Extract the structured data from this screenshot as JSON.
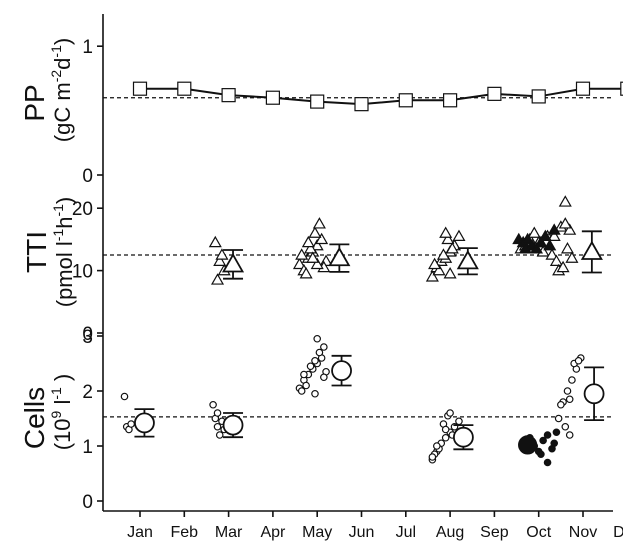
{
  "chart_data": {
    "type": "scatter",
    "x_axis": {
      "categories": [
        "Jan",
        "Feb",
        "Mar",
        "Apr",
        "May",
        "Jun",
        "Jul",
        "Aug",
        "Sep",
        "Oct",
        "Nov",
        "Dec"
      ]
    },
    "panels": [
      {
        "id": "pp",
        "ylabel_line1": "PP",
        "ylabel_line2": "(gC m",
        "ylabel_sup1": "-2",
        "ylabel_mid": "d",
        "ylabel_sup2": "-1",
        "ylabel_end": ")",
        "ylim": [
          0,
          1.25
        ],
        "ticks": [
          0,
          1
        ],
        "tick_labels": [
          "0",
          "1"
        ],
        "reference_line": 0.6,
        "series": [
          {
            "kind": "monthly_mean_line",
            "marker": "square",
            "x": [
              1,
              2,
              3,
              4,
              5,
              6,
              7,
              8,
              9,
              10,
              11,
              12
            ],
            "y": [
              0.67,
              0.67,
              0.62,
              0.6,
              0.57,
              0.55,
              0.58,
              0.58,
              0.63,
              0.61,
              0.67,
              0.67
            ]
          }
        ]
      },
      {
        "id": "tti",
        "ylabel_line1": "TTI",
        "ylabel_line2": "(pmol l",
        "ylabel_sup1": "-1",
        "ylabel_mid": "h",
        "ylabel_sup2": "-1",
        "ylabel_end": ")",
        "ylim": [
          0,
          25
        ],
        "ticks": [
          0,
          10,
          20
        ],
        "tick_labels": [
          "0",
          "10",
          "20"
        ],
        "reference_line": 12.5,
        "series": [
          {
            "kind": "individual_open",
            "marker": "triangle",
            "x": [
              2.7,
              2.8,
              2.9,
              2.75,
              2.85,
              4.6,
              4.7,
              4.8,
              4.9,
              5.0,
              5.1,
              5.2,
              4.75,
              4.85,
              4.95,
              5.05,
              4.65,
              5.15,
              4.8,
              5.0,
              4.9,
              7.6,
              7.7,
              7.8,
              7.9,
              8.0,
              8.1,
              8.2,
              7.75,
              7.85,
              7.95,
              8.05,
              7.65,
              7.9,
              8.0,
              9.6,
              9.7,
              9.8,
              9.9,
              10.0,
              10.1,
              10.2,
              10.3,
              10.4,
              10.5,
              10.6,
              10.7,
              10.45,
              10.55,
              10.65,
              10.35,
              10.75,
              10.6
            ],
            "y": [
              14.5,
              11.5,
              10.0,
              8.5,
              12.5,
              11.0,
              10.0,
              12.0,
              13.0,
              14.0,
              15.0,
              11.5,
              9.5,
              13.5,
              16.0,
              17.5,
              12.5,
              10.5,
              14.5,
              11.0,
              12.0,
              9.0,
              10.5,
              11.5,
              12.0,
              13.0,
              14.0,
              15.5,
              10.0,
              12.5,
              15.0,
              13.5,
              11.0,
              16.0,
              9.5,
              13.5,
              14.0,
              15.0,
              16.0,
              14.5,
              13.0,
              15.5,
              12.5,
              11.5,
              17.0,
              21.0,
              16.5,
              10.0,
              10.5,
              13.5,
              15.5,
              12.0,
              17.5
            ]
          },
          {
            "kind": "individual_solid",
            "marker": "triangle",
            "x": [
              9.55,
              9.65,
              9.75,
              9.85,
              9.95,
              10.05,
              10.15,
              10.25,
              10.35,
              9.7
            ],
            "y": [
              15.0,
              14.5,
              15.0,
              14.0,
              13.5,
              14.5,
              15.5,
              14.0,
              16.5,
              13.5
            ]
          },
          {
            "kind": "monthly_mean",
            "marker": "triangle",
            "x": [
              3.1,
              5.5,
              8.4,
              11.2
            ],
            "y": [
              11.0,
              12.0,
              11.5,
              13.0
            ],
            "err": [
              2.3,
              2.2,
              2.1,
              3.3
            ]
          }
        ]
      },
      {
        "id": "cells",
        "ylabel_line1": "Cells",
        "ylabel_line2": "(10",
        "ylabel_sup1": "9",
        "ylabel_mid": " l",
        "ylabel_sup2": "-1",
        "ylabel_end": " )",
        "ylim": [
          0,
          3
        ],
        "ticks": [
          0,
          1,
          2,
          3
        ],
        "tick_labels": [
          "0",
          "1",
          "2",
          "3"
        ],
        "reference_line": 1.53,
        "series": [
          {
            "kind": "individual_open",
            "marker": "circle",
            "x": [
              0.65,
              0.7,
              0.75,
              0.8,
              2.65,
              2.7,
              2.75,
              2.8,
              2.85,
              2.9,
              2.75,
              4.6,
              4.7,
              4.8,
              4.9,
              5.0,
              5.1,
              5.2,
              4.75,
              4.85,
              4.95,
              5.05,
              4.65,
              5.15,
              5.0,
              5.15,
              4.7,
              4.95,
              7.6,
              7.7,
              7.8,
              7.9,
              8.0,
              8.1,
              8.2,
              7.65,
              7.75,
              7.85,
              7.95,
              8.05,
              7.7,
              7.9,
              8.0,
              7.6,
              10.45,
              10.55,
              10.65,
              10.75,
              10.85,
              10.95,
              10.5,
              10.6,
              10.7,
              10.8,
              10.9,
              10.7
            ],
            "y": [
              1.9,
              1.35,
              1.3,
              1.4,
              1.75,
              1.5,
              1.35,
              1.2,
              1.45,
              1.3,
              1.6,
              2.05,
              2.2,
              2.3,
              2.4,
              2.5,
              2.6,
              2.35,
              2.1,
              2.45,
              2.55,
              2.7,
              2.0,
              2.25,
              2.95,
              2.8,
              2.3,
              1.95,
              0.75,
              0.9,
              1.05,
              1.15,
              1.25,
              1.35,
              1.45,
              0.85,
              0.95,
              1.4,
              1.55,
              1.2,
              1.0,
              1.3,
              1.6,
              0.8,
              1.5,
              1.8,
              2.0,
              2.2,
              2.4,
              2.6,
              1.75,
              1.35,
              1.85,
              2.5,
              2.55,
              1.2
            ]
          },
          {
            "kind": "individual_solid",
            "marker": "circle",
            "x": [
              9.7,
              9.8,
              9.9,
              10.0,
              10.1,
              10.2,
              10.3,
              10.4,
              10.2,
              10.35,
              10.05
            ],
            "y": [
              1.05,
              1.15,
              1.0,
              0.9,
              1.1,
              1.2,
              0.95,
              1.25,
              0.7,
              1.05,
              0.85
            ],
            "big_solid_mean": {
              "x": 9.75,
              "y": 1.02
            }
          },
          {
            "kind": "monthly_mean",
            "marker": "circle",
            "x": [
              1.1,
              3.1,
              5.55,
              8.3,
              11.25
            ],
            "y": [
              1.42,
              1.38,
              2.37,
              1.16,
              1.95
            ],
            "err": [
              0.25,
              0.22,
              0.27,
              0.22,
              0.48
            ]
          }
        ]
      }
    ]
  }
}
